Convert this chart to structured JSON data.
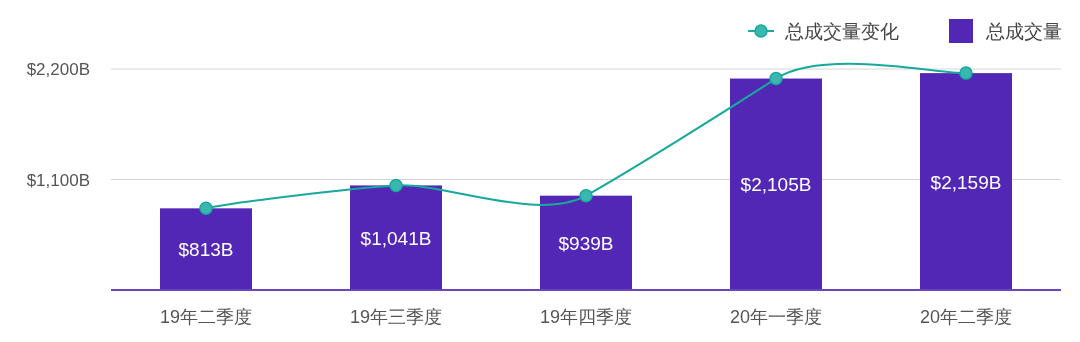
{
  "chart_data": {
    "type": "bar",
    "categories": [
      "19年二季度",
      "19年三季度",
      "19年四季度",
      "20年一季度",
      "20年二季度"
    ],
    "series": [
      {
        "type": "line",
        "name": "总成交量变化",
        "color": "#17a99c",
        "values": [
          813,
          1041,
          939,
          2105,
          2159
        ]
      },
      {
        "name": "总成交量",
        "color": "#5227b5",
        "values": [
          813,
          1041,
          939,
          2105,
          2159
        ],
        "value_labels": [
          "$813B",
          "$1,041B",
          "$939B",
          "$2,105B",
          "$2,159B"
        ]
      }
    ],
    "ylim": [
      0,
      2200
    ],
    "yticks": [
      {
        "value": 1100,
        "label": "$1,100B"
      },
      {
        "value": 2200,
        "label": "$2,200B"
      }
    ],
    "grid": "y",
    "legend": "top right",
    "marker": "circle"
  }
}
